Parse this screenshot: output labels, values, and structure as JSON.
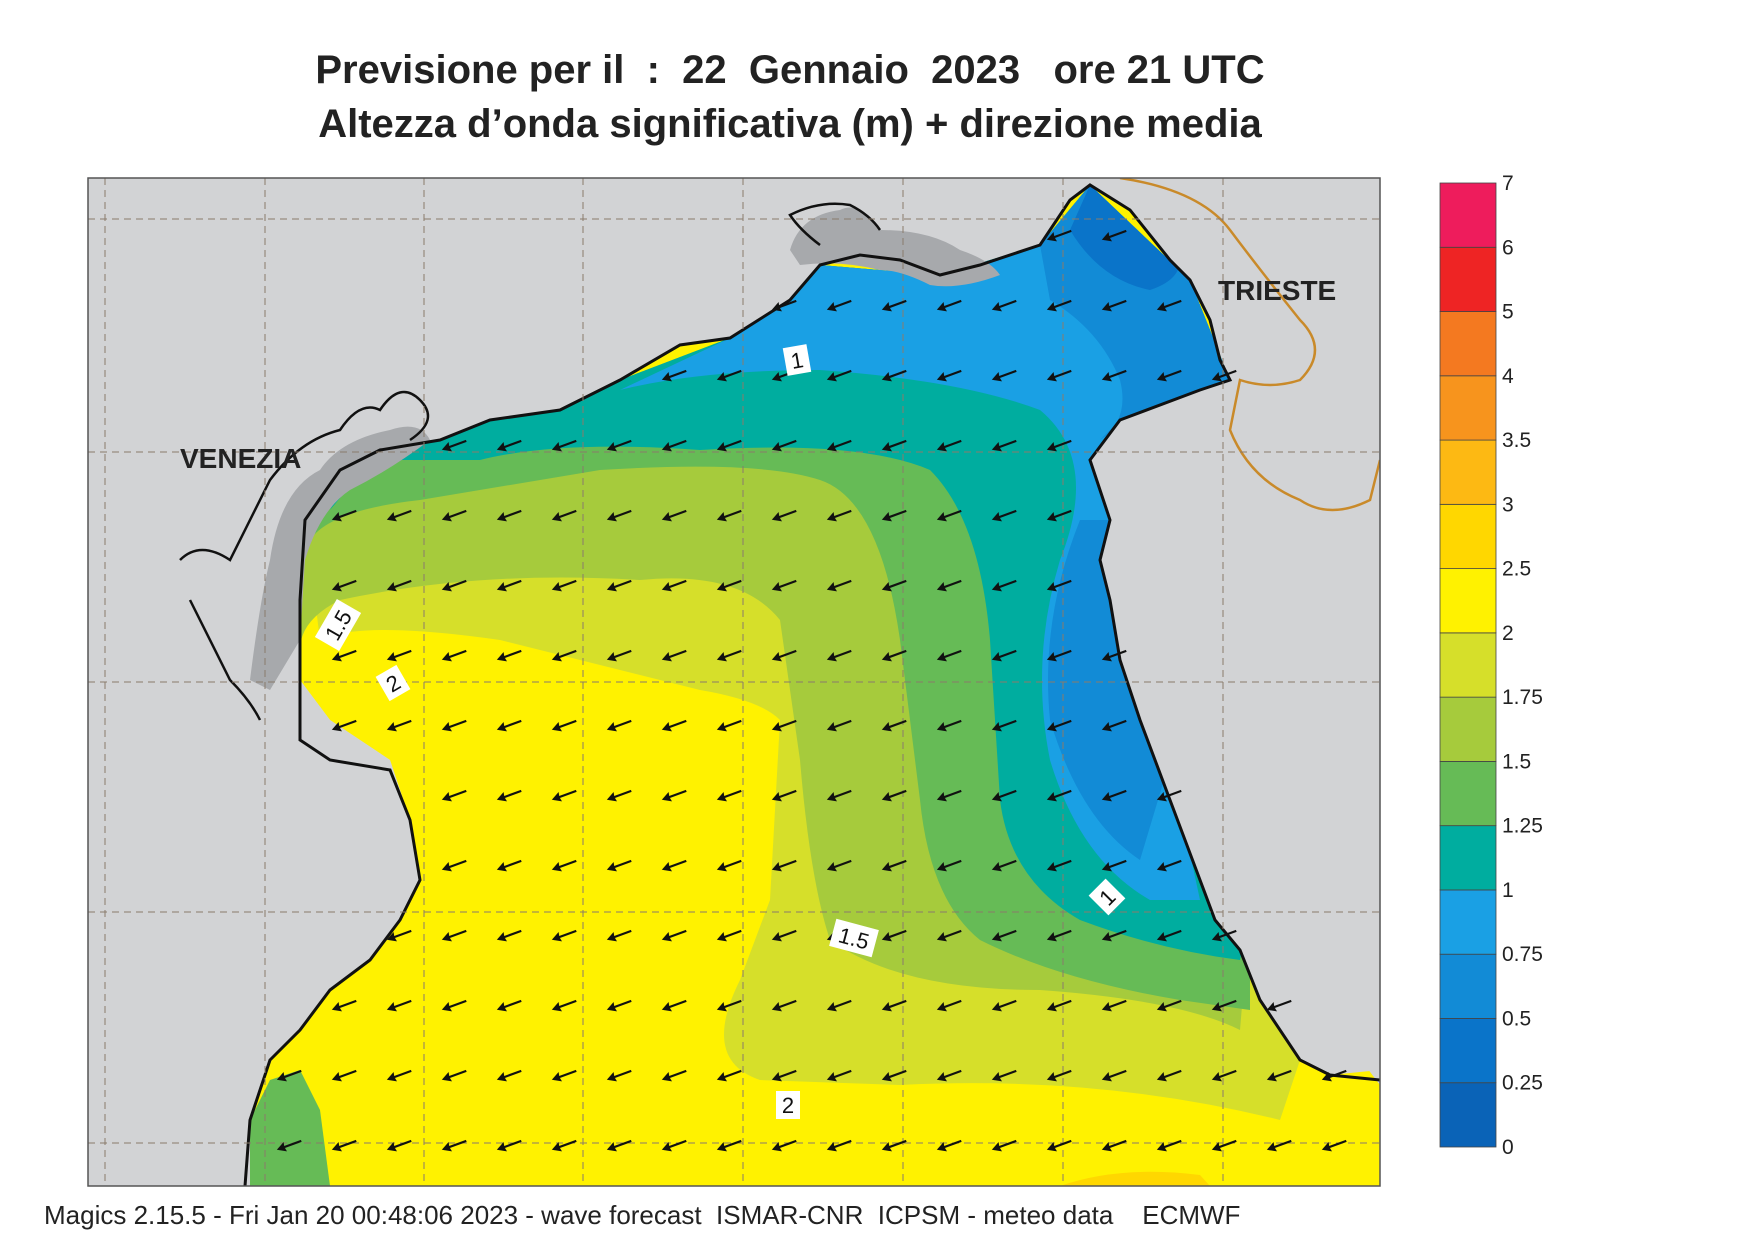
{
  "title": {
    "line1": "Previsione per il  :  22  Gennaio  2023   ore 21 UTC",
    "line2": "Altezza d’onda significativa (m) + direzione media"
  },
  "map_labels": {
    "venezia": "VENEZIA",
    "trieste": "TRIESTE"
  },
  "contour_labels": [
    "1",
    "1.5",
    "2",
    "1",
    "1.5",
    "2"
  ],
  "legend": {
    "items": [
      {
        "label": "0",
        "color": "#0a63b7"
      },
      {
        "label": "0.25",
        "color": "#0a74c9"
      },
      {
        "label": "0.5",
        "color": "#128bd6"
      },
      {
        "label": "0.75",
        "color": "#1aa0e4"
      },
      {
        "label": "1",
        "color": "#00ad9f"
      },
      {
        "label": "1.25",
        "color": "#66bb56"
      },
      {
        "label": "1.5",
        "color": "#a6cb3c"
      },
      {
        "label": "1.75",
        "color": "#d6df2a"
      },
      {
        "label": "2",
        "color": "#fff200"
      },
      {
        "label": "2.5",
        "color": "#ffd700"
      },
      {
        "label": "3",
        "color": "#fdb913"
      },
      {
        "label": "3.5",
        "color": "#f7941d"
      },
      {
        "label": "4",
        "color": "#f47920"
      },
      {
        "label": "5",
        "color": "#ee2424"
      },
      {
        "label": "6",
        "color": "#ee1c5c"
      },
      {
        "label": "7",
        "color": "#ffffff"
      }
    ]
  },
  "colors": {
    "land": "#d2d3d5",
    "coast": "#111111",
    "border": "#c98a2a"
  },
  "arrows": {
    "direction": "south-west",
    "icon": "wave-direction-arrow"
  },
  "footer": "Magics 2.15.5 - Fri Jan 20 00:48:06 2023 - wave forecast  ISMAR-CNR  ICPSM - meteo data    ECMWF"
}
